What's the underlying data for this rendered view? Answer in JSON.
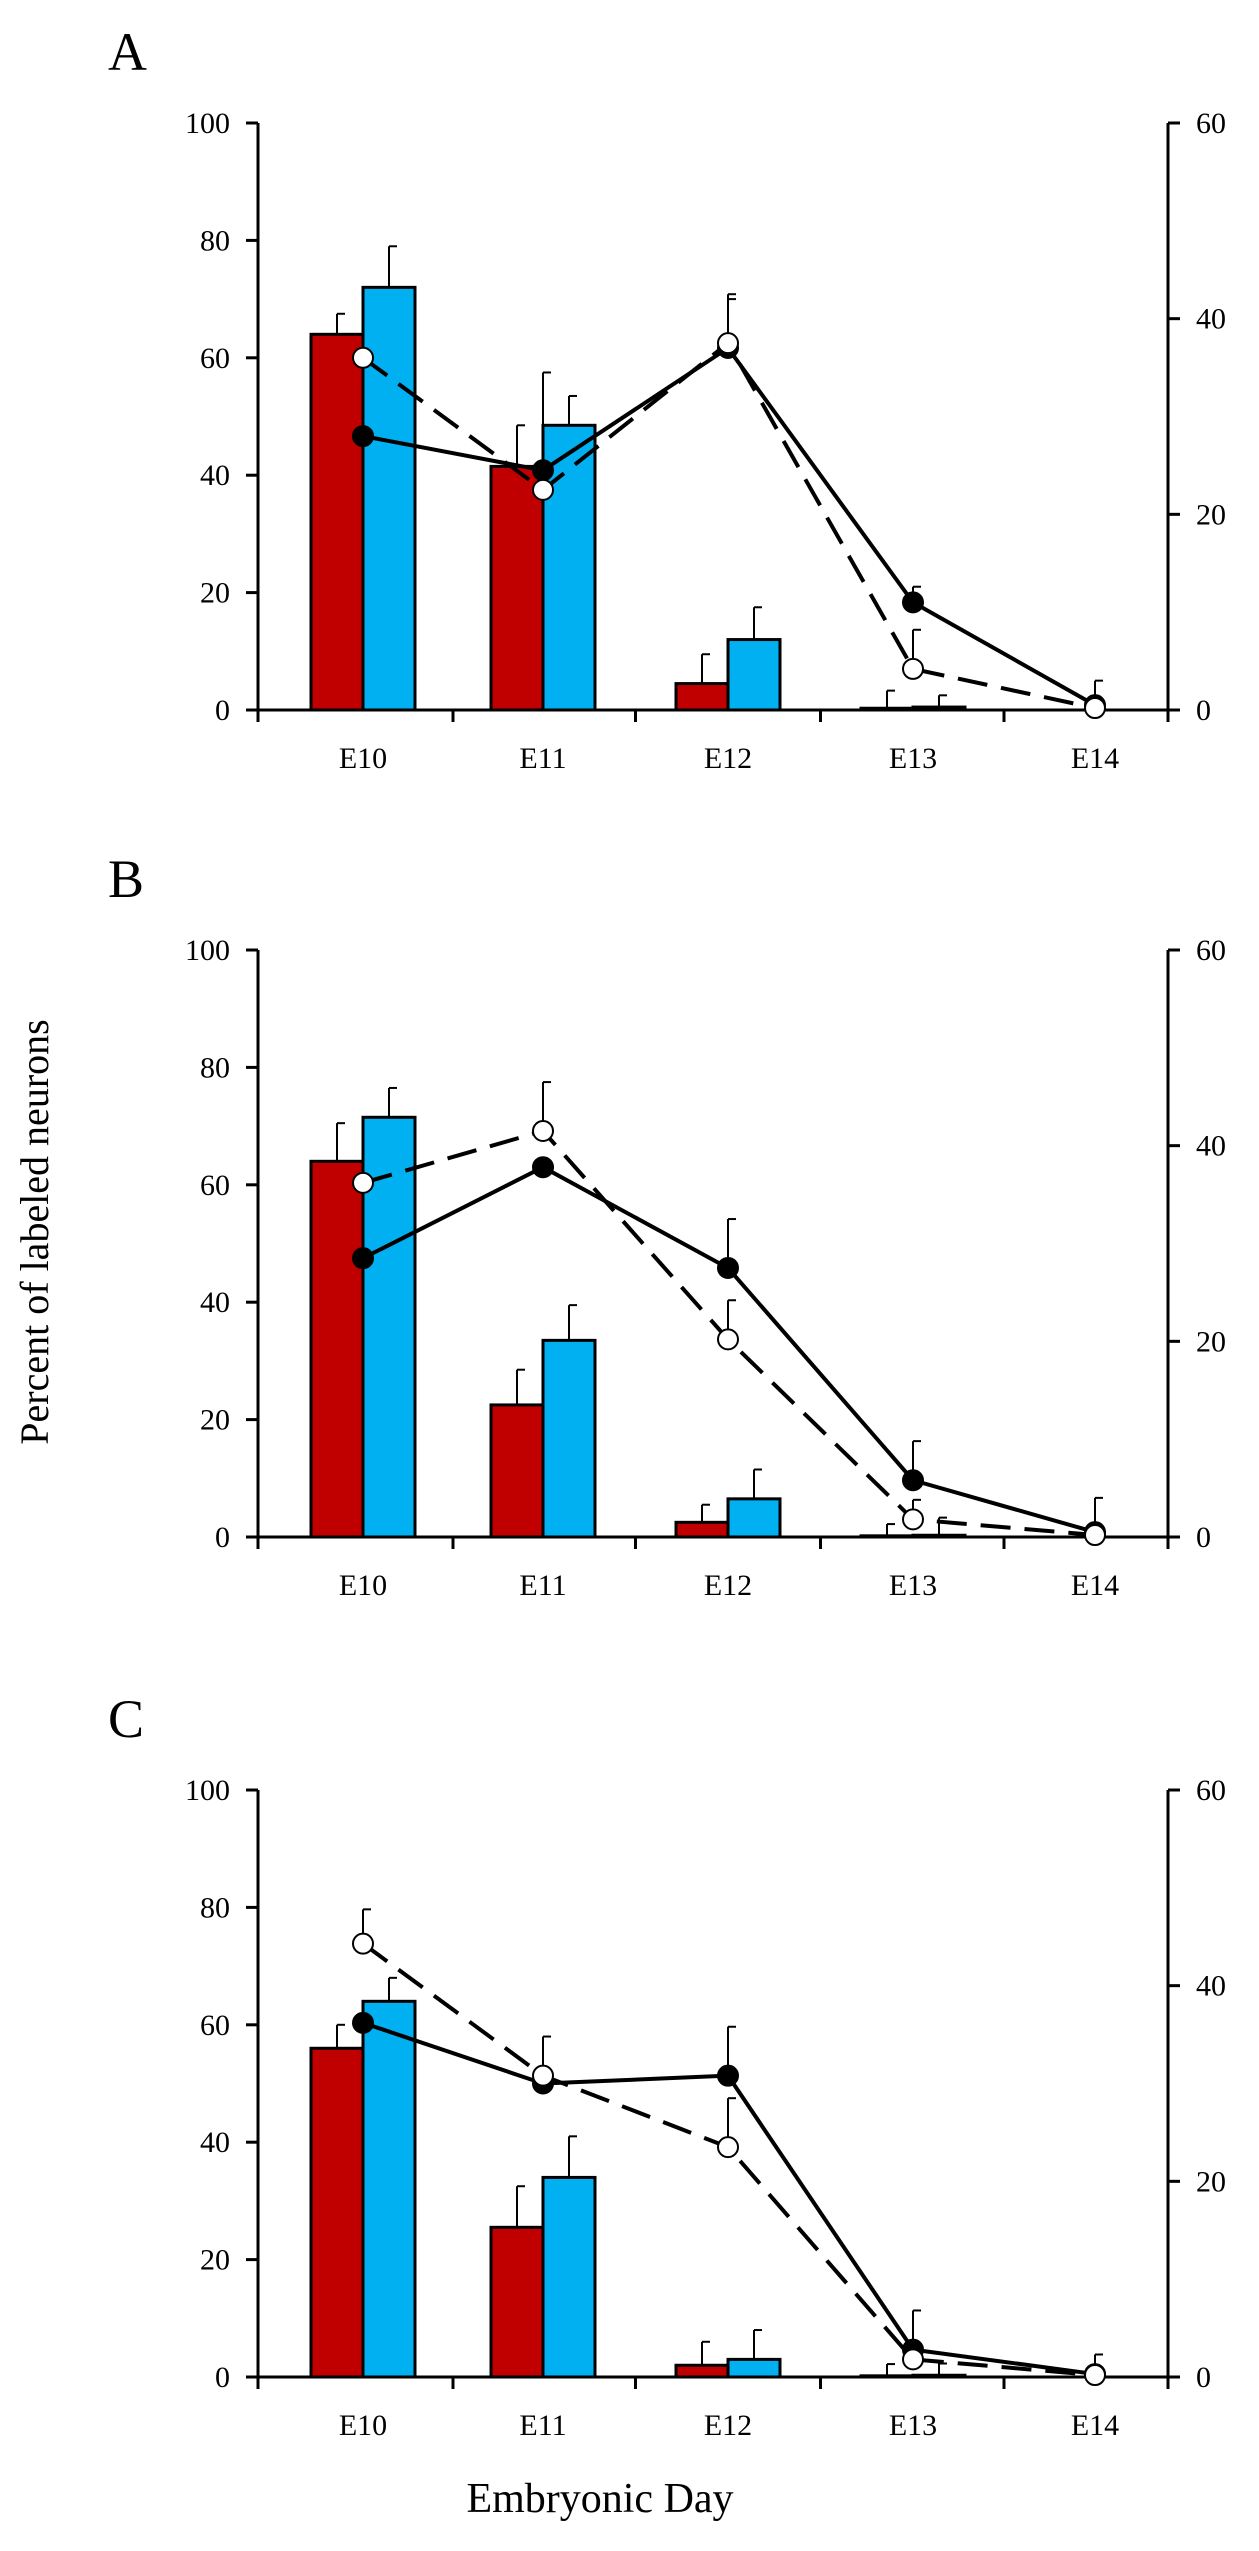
{
  "figure": {
    "ylabel": "Percent of labeled neurons",
    "xlabel": "Embryonic Day"
  },
  "chart_data": [
    {
      "panel": "A",
      "type": "bar+line",
      "categories": [
        "E10",
        "E11",
        "E12",
        "E13",
        "E14"
      ],
      "ylim_left": [
        0,
        100
      ],
      "yticks_left": [
        "0",
        "20",
        "40",
        "60",
        "80",
        "100"
      ],
      "ylim_right": [
        0,
        60
      ],
      "yticks_right": [
        "0",
        "20",
        "40",
        "60"
      ],
      "bars": [
        {
          "name": "red",
          "color": "#c00000",
          "values": [
            64,
            41.5,
            4.5,
            0.3,
            0
          ],
          "errors": [
            3.5,
            7,
            5,
            3,
            0
          ]
        },
        {
          "name": "blue",
          "color": "#00b0f0",
          "values": [
            72,
            48.5,
            12,
            0.5,
            0
          ],
          "errors": [
            7,
            5,
            5.5,
            2,
            0
          ]
        }
      ],
      "lines": [
        {
          "name": "solid-filled",
          "style": "solid",
          "marker": "filled",
          "values": [
            28,
            24.5,
            37,
            11,
            0.5
          ],
          "errors": [
            0,
            10,
            5,
            1.6,
            2.5
          ]
        },
        {
          "name": "dashed-open",
          "style": "dashed",
          "marker": "open",
          "values": [
            36,
            22.5,
            37.5,
            4.2,
            0.2
          ],
          "errors": [
            0,
            0,
            5,
            4,
            0
          ]
        }
      ]
    },
    {
      "panel": "B",
      "type": "bar+line",
      "categories": [
        "E10",
        "E11",
        "E12",
        "E13",
        "E14"
      ],
      "ylim_left": [
        0,
        100
      ],
      "yticks_left": [
        "0",
        "20",
        "40",
        "60",
        "80",
        "100"
      ],
      "ylim_right": [
        0,
        60
      ],
      "yticks_right": [
        "0",
        "20",
        "40",
        "60"
      ],
      "bars": [
        {
          "name": "red",
          "color": "#c00000",
          "values": [
            64,
            22.5,
            2.5,
            0.2,
            0
          ],
          "errors": [
            6.5,
            6,
            3,
            2,
            0
          ]
        },
        {
          "name": "blue",
          "color": "#00b0f0",
          "values": [
            71.5,
            33.5,
            6.5,
            0.3,
            0
          ],
          "errors": [
            5,
            6,
            5,
            3,
            0
          ]
        }
      ],
      "lines": [
        {
          "name": "solid-filled",
          "style": "solid",
          "marker": "filled",
          "values": [
            28.5,
            37.8,
            27.5,
            5.8,
            0.5
          ],
          "errors": [
            0,
            0,
            5,
            4,
            3.5
          ]
        },
        {
          "name": "dashed-open",
          "style": "dashed",
          "marker": "open",
          "values": [
            36.2,
            41.5,
            20.2,
            1.8,
            0.2
          ],
          "errors": [
            0,
            5,
            4,
            2,
            0
          ]
        }
      ]
    },
    {
      "panel": "C",
      "type": "bar+line",
      "categories": [
        "E10",
        "E11",
        "E12",
        "E13",
        "E14"
      ],
      "ylim_left": [
        0,
        100
      ],
      "yticks_left": [
        "0",
        "20",
        "40",
        "60",
        "80",
        "100"
      ],
      "ylim_right": [
        0,
        60
      ],
      "yticks_right": [
        "0",
        "20",
        "40",
        "60"
      ],
      "bars": [
        {
          "name": "red",
          "color": "#c00000",
          "values": [
            56,
            25.5,
            2,
            0.2,
            0
          ],
          "errors": [
            4,
            7,
            4,
            2,
            0
          ]
        },
        {
          "name": "blue",
          "color": "#00b0f0",
          "values": [
            64,
            34,
            3,
            0.3,
            0
          ],
          "errors": [
            4,
            7,
            5,
            2,
            0
          ]
        }
      ],
      "lines": [
        {
          "name": "solid-filled",
          "style": "solid",
          "marker": "filled",
          "values": [
            36.2,
            30,
            30.8,
            2.8,
            0.3
          ],
          "errors": [
            0,
            0,
            5,
            4,
            2
          ]
        },
        {
          "name": "dashed-open",
          "style": "dashed",
          "marker": "open",
          "values": [
            44.3,
            30.8,
            23.5,
            1.8,
            0.2
          ],
          "errors": [
            3.5,
            4,
            5,
            0,
            0
          ]
        }
      ]
    }
  ]
}
